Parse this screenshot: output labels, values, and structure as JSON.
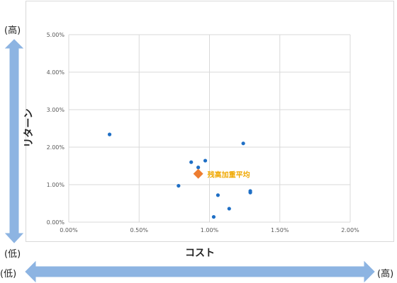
{
  "chart_data": {
    "type": "scatter",
    "title": "",
    "xlabel": "コスト",
    "ylabel": "リターン",
    "xlim": [
      0,
      0.02
    ],
    "ylim": [
      0,
      0.05
    ],
    "x_ticks": [
      "0.00%",
      "0.50%",
      "1.00%",
      "1.50%",
      "2.00%"
    ],
    "y_ticks": [
      "0.00%",
      "1.00%",
      "2.00%",
      "3.00%",
      "4.00%",
      "5.00%"
    ],
    "grid": true,
    "series": [
      {
        "color": "#1f6fc5",
        "marker": "circle",
        "points": [
          {
            "x": 0.0029,
            "y": 0.0234
          },
          {
            "x": 0.0078,
            "y": 0.0097
          },
          {
            "x": 0.0087,
            "y": 0.016
          },
          {
            "x": 0.0092,
            "y": 0.0146
          },
          {
            "x": 0.0097,
            "y": 0.0164
          },
          {
            "x": 0.0103,
            "y": 0.0014
          },
          {
            "x": 0.0106,
            "y": 0.0072
          },
          {
            "x": 0.0114,
            "y": 0.0036
          },
          {
            "x": 0.0124,
            "y": 0.021
          },
          {
            "x": 0.0129,
            "y": 0.0079
          },
          {
            "x": 0.0129,
            "y": 0.0083
          }
        ]
      },
      {
        "name": "残高加重平均",
        "color": "#ed7d31",
        "marker": "diamond",
        "points": [
          {
            "x": 0.0092,
            "y": 0.0129
          }
        ]
      }
    ],
    "annotations": [
      {
        "text": "残高加重平均",
        "x": 0.0092,
        "y": 0.0129,
        "color": "#f0a800"
      }
    ]
  },
  "scale_labels": {
    "y_high": "(高)",
    "y_low": "(低)",
    "x_low": "(低)",
    "x_high": "(高)"
  },
  "colors": {
    "arrow": "#8db4e2",
    "grid": "#d9d9d9",
    "frame": "#d9d9d9"
  }
}
